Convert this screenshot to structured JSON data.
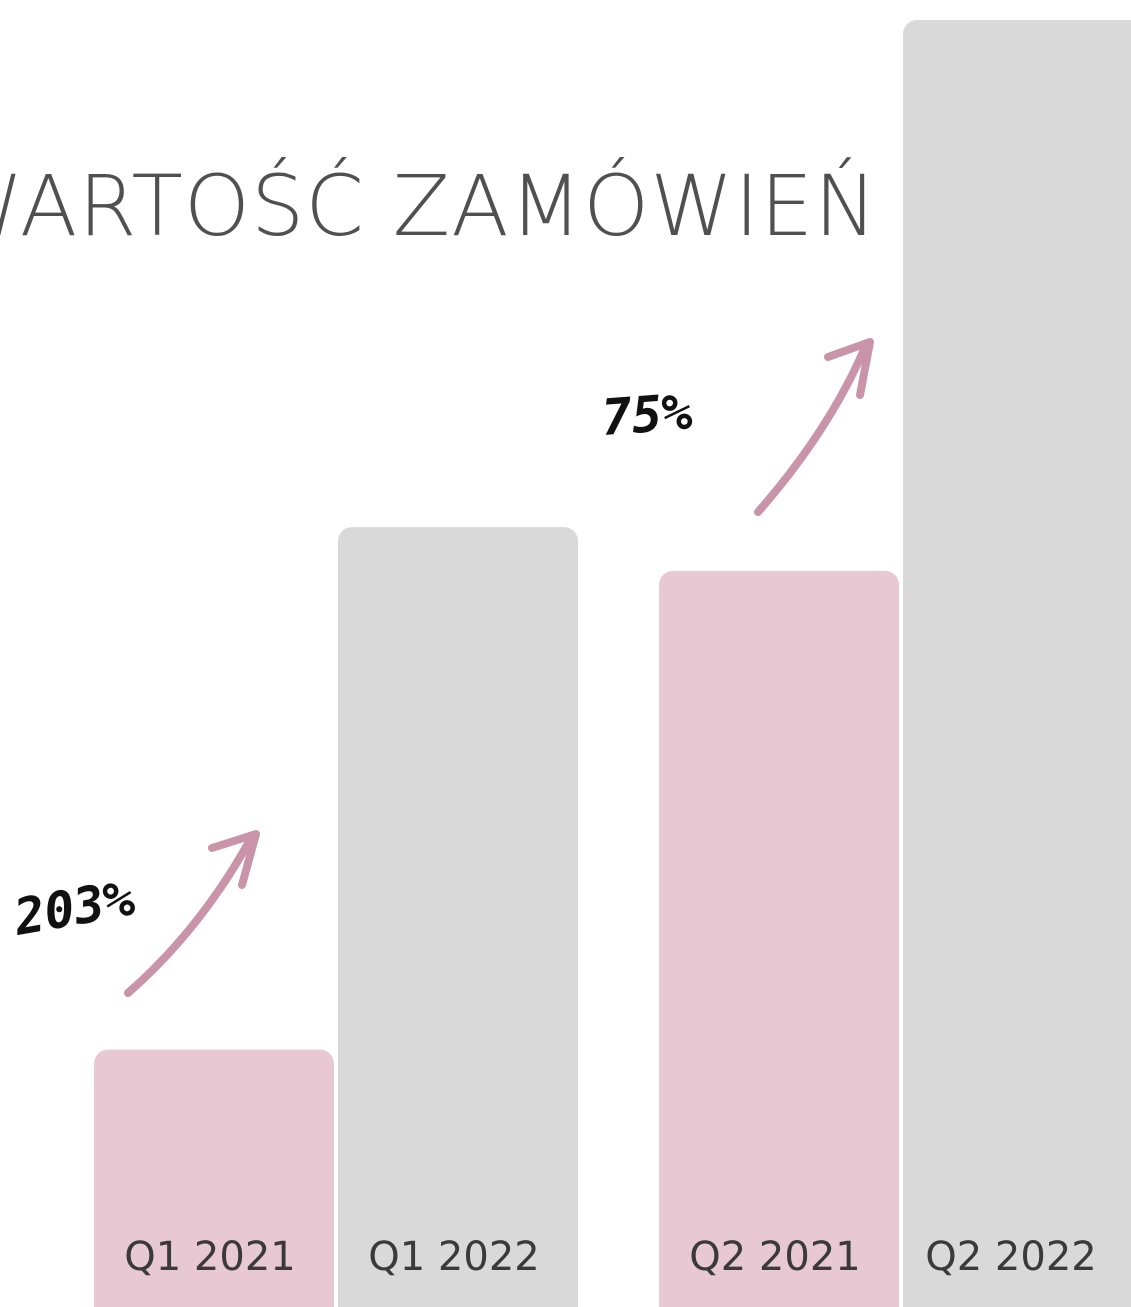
{
  "chart_data": {
    "type": "bar",
    "title": "WARTOŚĆ ZAMÓWIEŃ",
    "categories": [
      "Q1 2021",
      "Q1 2022",
      "Q2 2021",
      "Q2 2022"
    ],
    "values": [
      100,
      303,
      286,
      500
    ],
    "colors": [
      "#e8c8d3",
      "#d9d9d9",
      "#e8c8d3",
      "#d9d9d9"
    ],
    "ylim": [
      0,
      500
    ],
    "annotations": [
      "203%",
      "75%"
    ]
  }
}
